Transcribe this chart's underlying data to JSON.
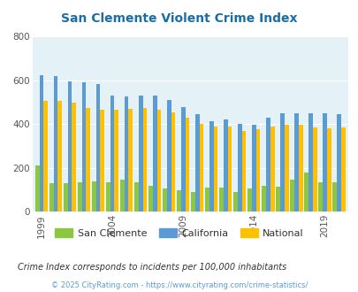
{
  "title": "San Clemente Violent Crime Index",
  "years": [
    1999,
    2000,
    2001,
    2002,
    2003,
    2004,
    2005,
    2006,
    2007,
    2008,
    2009,
    2010,
    2011,
    2012,
    2013,
    2014,
    2015,
    2016,
    2017,
    2018,
    2019,
    2020
  ],
  "san_clemente": [
    210,
    130,
    130,
    135,
    140,
    135,
    148,
    135,
    120,
    108,
    100,
    88,
    112,
    112,
    88,
    105,
    120,
    113,
    145,
    180,
    135,
    135
  ],
  "california": [
    622,
    618,
    595,
    590,
    583,
    530,
    525,
    530,
    530,
    510,
    478,
    445,
    412,
    422,
    400,
    396,
    428,
    450,
    449,
    449,
    448,
    445
  ],
  "national": [
    508,
    508,
    500,
    475,
    465,
    465,
    470,
    475,
    465,
    455,
    429,
    402,
    389,
    390,
    368,
    375,
    388,
    395,
    398,
    383,
    380,
    383
  ],
  "san_clemente_color": "#8dc63f",
  "california_color": "#5b9bd5",
  "national_color": "#ffc000",
  "background_color": "#e4f1f7",
  "title_color": "#1a6ea8",
  "ylim": [
    0,
    800
  ],
  "yticks": [
    0,
    200,
    400,
    600,
    800
  ],
  "xlabel_ticks": [
    1999,
    2004,
    2009,
    2014,
    2019
  ],
  "legend_labels": [
    "San Clemente",
    "California",
    "National"
  ],
  "footnote1": "Crime Index corresponds to incidents per 100,000 inhabitants",
  "footnote2": "© 2025 CityRating.com - https://www.cityrating.com/crime-statistics/",
  "footnote1_color": "#333333",
  "footnote2_color": "#5b9bd5"
}
